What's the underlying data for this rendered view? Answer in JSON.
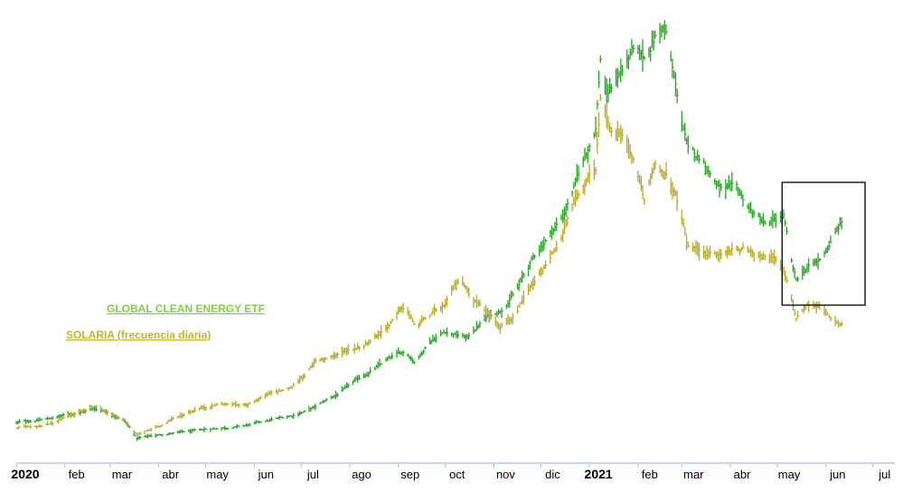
{
  "chart_data": {
    "type": "line",
    "subtype": "daily price bars (high-low-close), two series rebased to common start",
    "x_axis": {
      "tick_labels": [
        "2020",
        "feb",
        "mar",
        "abr",
        "may",
        "jun",
        "jul",
        "ago",
        "sep",
        "oct",
        "nov",
        "dic",
        "2021",
        "feb",
        "mar",
        "abr",
        "may",
        "jun",
        "jul"
      ],
      "year_labels": [
        "2020",
        "2021"
      ]
    },
    "y_axis": {
      "visible": false
    },
    "grid": false,
    "legend": [
      {
        "name": "GLOBAL CLEAN ENERGY ETF",
        "color": "#7bd23d"
      },
      {
        "name": "SOLARIA (frecuencia diaria)",
        "color": "#c2b52c"
      }
    ],
    "series": [
      {
        "name": "GLOBAL CLEAN ENERGY ETF",
        "color": "#22a51f",
        "x": [
          "2020-01-01",
          "2020-01-20",
          "2020-02-05",
          "2020-02-20",
          "2020-03-01",
          "2020-03-10",
          "2020-03-18",
          "2020-03-25",
          "2020-04-10",
          "2020-04-25",
          "2020-05-10",
          "2020-05-25",
          "2020-06-10",
          "2020-06-25",
          "2020-07-10",
          "2020-07-25",
          "2020-08-10",
          "2020-08-25",
          "2020-09-05",
          "2020-09-12",
          "2020-09-20",
          "2020-10-01",
          "2020-10-15",
          "2020-10-25",
          "2020-11-05",
          "2020-11-15",
          "2020-11-25",
          "2020-12-05",
          "2020-12-15",
          "2020-12-25",
          "2021-01-05",
          "2021-01-08",
          "2021-01-12",
          "2021-01-20",
          "2021-01-28",
          "2021-02-05",
          "2021-02-12",
          "2021-02-18",
          "2021-02-25",
          "2021-03-05",
          "2021-03-15",
          "2021-03-25",
          "2021-04-05",
          "2021-04-15",
          "2021-04-25",
          "2021-05-05",
          "2021-05-10",
          "2021-05-13",
          "2021-05-20",
          "2021-05-28",
          "2021-06-05",
          "2021-06-12"
        ],
        "values": [
          49,
          51,
          54,
          57,
          55,
          50,
          40,
          41,
          43,
          44,
          46,
          47,
          50,
          53,
          58,
          66,
          76,
          85,
          90,
          84,
          96,
          102,
          98,
          108,
          114,
          125,
          142,
          156,
          168,
          192,
          220,
          260,
          238,
          250,
          262,
          258,
          272,
          278,
          242,
          205,
          200,
          185,
          182,
          170,
          162,
          168,
          140,
          130,
          138,
          142,
          155,
          166
        ]
      },
      {
        "name": "SOLARIA (frecuencia diaria)",
        "color": "#b8aa22",
        "x": [
          "2020-01-01",
          "2020-01-20",
          "2020-02-05",
          "2020-02-20",
          "2020-03-01",
          "2020-03-10",
          "2020-03-18",
          "2020-03-25",
          "2020-04-10",
          "2020-04-25",
          "2020-05-10",
          "2020-05-25",
          "2020-06-10",
          "2020-06-25",
          "2020-07-10",
          "2020-07-25",
          "2020-08-10",
          "2020-08-25",
          "2020-09-05",
          "2020-09-12",
          "2020-09-20",
          "2020-10-01",
          "2020-10-10",
          "2020-10-20",
          "2020-11-05",
          "2020-11-15",
          "2020-11-25",
          "2020-12-05",
          "2020-12-15",
          "2020-12-25",
          "2021-01-05",
          "2021-01-08",
          "2021-01-15",
          "2021-01-25",
          "2021-02-05",
          "2021-02-12",
          "2021-02-25",
          "2021-03-05",
          "2021-03-15",
          "2021-03-25",
          "2021-04-05",
          "2021-04-15",
          "2021-04-25",
          "2021-05-05",
          "2021-05-13",
          "2021-05-20",
          "2021-05-28",
          "2021-06-05",
          "2021-06-12"
        ],
        "values": [
          46,
          48,
          53,
          59,
          54,
          50,
          42,
          44,
          51,
          57,
          60,
          59,
          65,
          69,
          84,
          89,
          94,
          105,
          116,
          104,
          110,
          116,
          132,
          120,
          106,
          112,
          126,
          140,
          158,
          180,
          195,
          235,
          220,
          212,
          175,
          200,
          180,
          150,
          148,
          145,
          150,
          148,
          146,
          138,
          110,
          118,
          116,
          108,
          104
        ]
      }
    ]
  },
  "annotation": {
    "type": "highlight-box",
    "x_start": "2021-05-04",
    "x_end": "2021-06-26"
  }
}
